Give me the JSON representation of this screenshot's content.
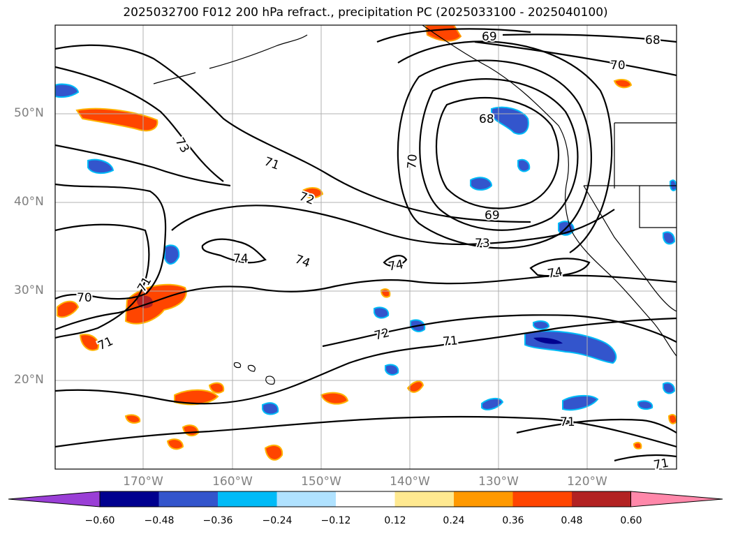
{
  "title": "2025032700 F012 200 hPa refract., precipitation PC (2025033100 - 2025040100)",
  "lat_labels": [
    "50°N",
    "40°N",
    "30°N",
    "20°N"
  ],
  "lon_labels": [
    "170°W",
    "160°W",
    "150°W",
    "140°W",
    "130°W",
    "120°W"
  ],
  "contour_labels": [
    "69",
    "68",
    "70",
    "73",
    "68",
    "71",
    "70",
    "72",
    "69",
    "73",
    "74",
    "74",
    "74",
    "74",
    "71",
    "70",
    "71",
    "72",
    "71",
    "71",
    "71"
  ],
  "colorbar": {
    "ticks": [
      "−0.60",
      "−0.48",
      "−0.36",
      "−0.24",
      "−0.12",
      "0.12",
      "0.24",
      "0.36",
      "0.48",
      "0.60"
    ],
    "colors": [
      "#9a3fd6",
      "#00008f",
      "#3355cc",
      "#00bbf7",
      "#b0e2ff",
      "#ffffff",
      "#ffe990",
      "#ff9900",
      "#ff4500",
      "#b22222",
      "#ff88aa"
    ]
  },
  "colors": {
    "frame": "#000000",
    "grid": "#b0b0b0",
    "contour": "#000000",
    "coast": "#000000"
  }
}
